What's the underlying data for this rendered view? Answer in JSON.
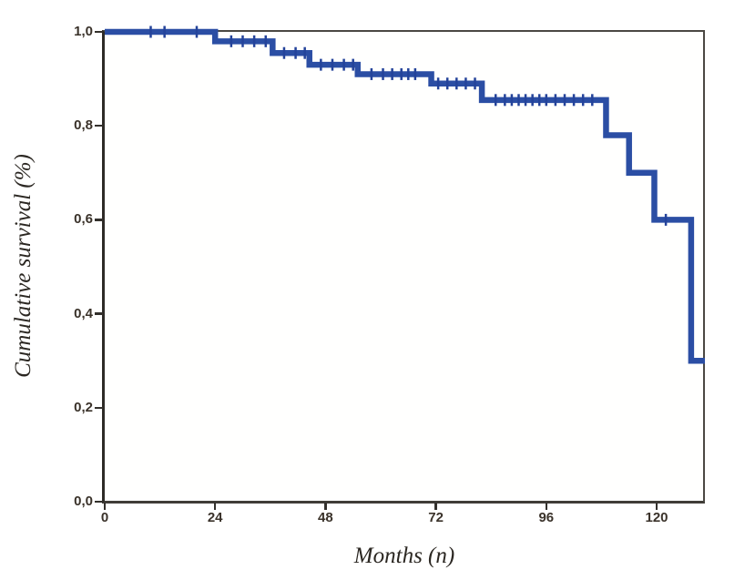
{
  "figure": {
    "background_color": "#ffffff",
    "axis_color": "#33302c",
    "frame_color": "#4b4843",
    "tick_label_color": "#3a322a",
    "title_color": "#2b2722"
  },
  "chart_data": {
    "type": "line",
    "subtype": "kaplan-meier-step",
    "title": "",
    "xlabel": "Months (n)",
    "ylabel": "Cumulative survival (%)",
    "x_ticks": [
      0,
      24,
      48,
      72,
      96,
      120
    ],
    "x_tick_labels": [
      "0",
      "24",
      "48",
      "72",
      "96",
      "120"
    ],
    "y_ticks": [
      0.0,
      0.2,
      0.4,
      0.6,
      0.8,
      1.0
    ],
    "y_tick_labels": [
      "0,0",
      "0,2",
      "0,4",
      "0,6",
      "0,8",
      "1,0"
    ],
    "xlim": [
      0,
      130.5
    ],
    "ylim": [
      0.0,
      1.0
    ],
    "grid": false,
    "legend_position": "none",
    "series": [
      {
        "name": "Cumulative survival",
        "color": "#2b4ea4",
        "censor_color": "#24439a",
        "line_width": 6.5,
        "step_points": [
          [
            0,
            1.0
          ],
          [
            24,
            1.0
          ],
          [
            24,
            0.98
          ],
          [
            36.5,
            0.98
          ],
          [
            36.5,
            0.955
          ],
          [
            44.5,
            0.955
          ],
          [
            44.5,
            0.93
          ],
          [
            55,
            0.93
          ],
          [
            55,
            0.91
          ],
          [
            71,
            0.91
          ],
          [
            71,
            0.89
          ],
          [
            82,
            0.89
          ],
          [
            82,
            0.855
          ],
          [
            109,
            0.855
          ],
          [
            109,
            0.78
          ],
          [
            114,
            0.78
          ],
          [
            114,
            0.7
          ],
          [
            119.5,
            0.7
          ],
          [
            119.5,
            0.6
          ],
          [
            127.5,
            0.6
          ],
          [
            127.5,
            0.3
          ],
          [
            130.5,
            0.3
          ]
        ],
        "censor_marks": [
          [
            10,
            1.0
          ],
          [
            13,
            1.0
          ],
          [
            20,
            1.0
          ],
          [
            27.5,
            0.98
          ],
          [
            30,
            0.98
          ],
          [
            32.5,
            0.98
          ],
          [
            35,
            0.98
          ],
          [
            39,
            0.955
          ],
          [
            41.5,
            0.955
          ],
          [
            43.5,
            0.955
          ],
          [
            47,
            0.93
          ],
          [
            49.5,
            0.93
          ],
          [
            52,
            0.93
          ],
          [
            54,
            0.93
          ],
          [
            58,
            0.91
          ],
          [
            60.5,
            0.91
          ],
          [
            62.5,
            0.91
          ],
          [
            64.5,
            0.91
          ],
          [
            66,
            0.91
          ],
          [
            67.5,
            0.91
          ],
          [
            72.5,
            0.89
          ],
          [
            74.5,
            0.89
          ],
          [
            76.5,
            0.89
          ],
          [
            78.5,
            0.89
          ],
          [
            80.5,
            0.89
          ],
          [
            85,
            0.855
          ],
          [
            87,
            0.855
          ],
          [
            88.5,
            0.855
          ],
          [
            90,
            0.855
          ],
          [
            91.5,
            0.855
          ],
          [
            93,
            0.855
          ],
          [
            94.5,
            0.855
          ],
          [
            96,
            0.855
          ],
          [
            98,
            0.855
          ],
          [
            100,
            0.855
          ],
          [
            102,
            0.855
          ],
          [
            104,
            0.855
          ],
          [
            106,
            0.855
          ],
          [
            122,
            0.6
          ]
        ]
      }
    ]
  }
}
